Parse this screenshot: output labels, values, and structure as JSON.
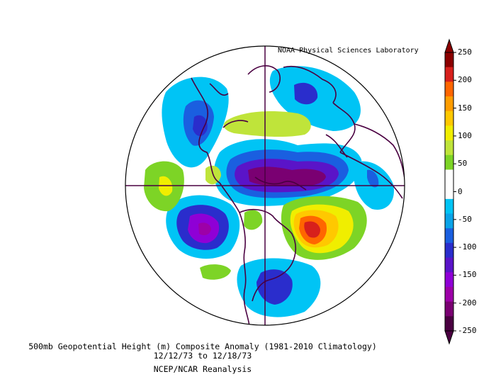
{
  "map": {
    "credit": "NOAA Physical Sciences Laboratory",
    "title_line1": "500mb Geopotential Height (m) Composite Anomaly (1981-2010 Climatology)",
    "date_start": "12/12/73",
    "date_sep": "to",
    "date_end": "12/18/73",
    "dataset": "NCEP/NCAR Reanalysis",
    "projection": "north polar stereographic",
    "colorbar": {
      "ticks": [
        "250",
        "200",
        "150",
        "100",
        "50",
        "0",
        "-50",
        "-100",
        "-150",
        "-200",
        "-250"
      ],
      "colors": [
        "#8b0000",
        "#d7201c",
        "#ff6600",
        "#ff9d00",
        "#ffc800",
        "#f0ee00",
        "#bfe43a",
        "#7dd426",
        "#ffffff",
        "#ffffff",
        "#00c4f5",
        "#0aa3e8",
        "#1a5fe0",
        "#2a2dcc",
        "#5a14c8",
        "#8f00d6",
        "#9d00a8",
        "#7a0072",
        "#4a0041"
      ]
    }
  }
}
